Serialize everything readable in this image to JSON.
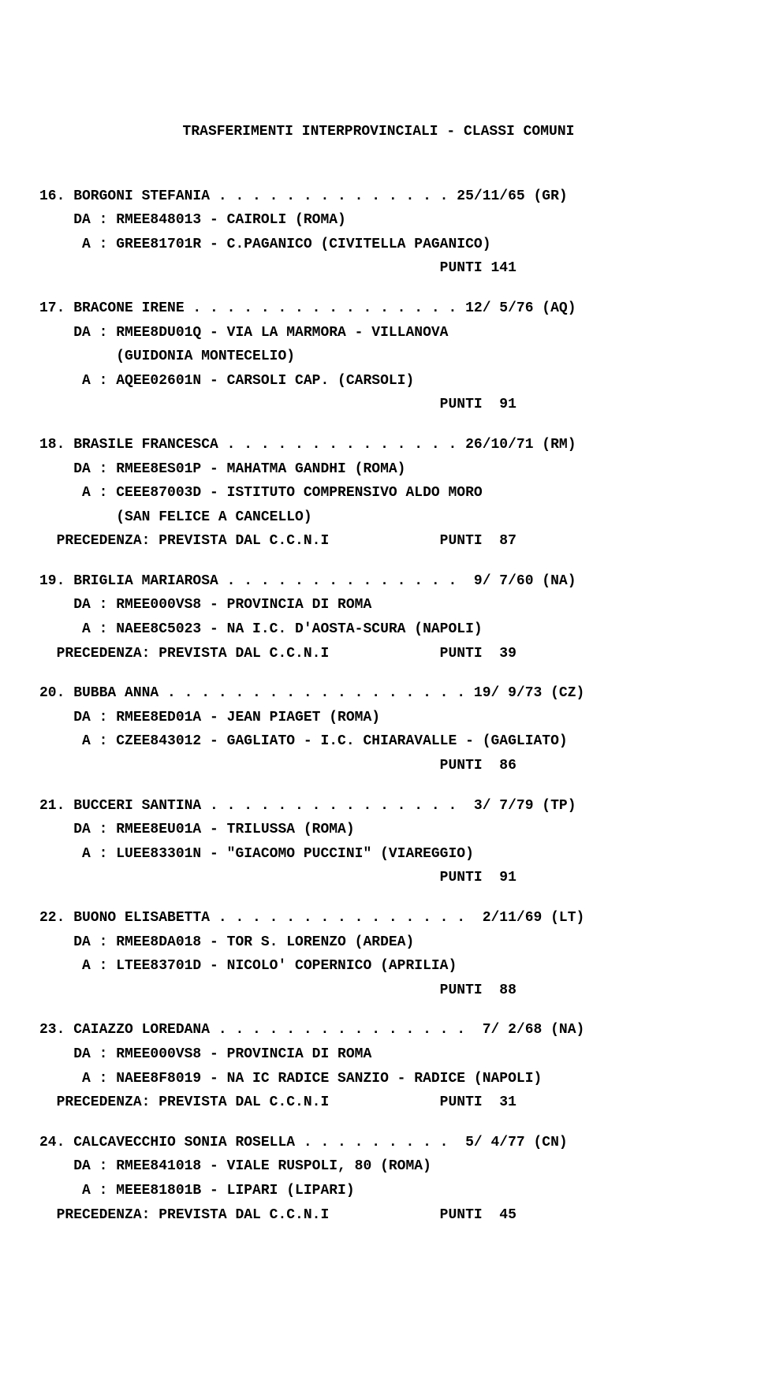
{
  "title": "TRASFERIMENTI INTERPROVINCIALI - CLASSI COMUNI",
  "entries": [
    {
      "num": "16.",
      "name": "BORGONI STEFANIA",
      "dots": " . . . . . . . . . . . . . . ",
      "date_prov": "25/11/65 (GR)",
      "da": "    DA : RMEE848013 - CAIROLI (ROMA)",
      "a": "     A : GREE81701R - C.PAGANICO (CIVITELLA PAGANICO)",
      "extra": null,
      "punti": "                                               PUNTI 141"
    },
    {
      "num": "17.",
      "name": "BRACONE IRENE",
      "dots": " . . . . . . . . . . . . . . . . ",
      "date_prov": "12/ 5/76 (AQ)",
      "da": "    DA : RMEE8DU01Q - VIA LA MARMORA - VILLANOVA",
      "da2": "         (GUIDONIA MONTECELIO)",
      "a": "     A : AQEE02601N - CARSOLI CAP. (CARSOLI)",
      "extra": null,
      "punti": "                                               PUNTI  91"
    },
    {
      "num": "18.",
      "name": "BRASILE FRANCESCA",
      "dots": " . . . . . . . . . . . . . . ",
      "date_prov": "26/10/71 (RM)",
      "da": "    DA : RMEE8ES01P - MAHATMA GANDHI (ROMA)",
      "a": "     A : CEEE87003D - ISTITUTO COMPRENSIVO ALDO MORO",
      "a2": "         (SAN FELICE A CANCELLO)",
      "extra": "  PRECEDENZA: PREVISTA DAL C.C.N.I             PUNTI  87",
      "punti": null
    },
    {
      "num": "19.",
      "name": "BRIGLIA MARIAROSA",
      "dots": " . . . . . . . . . . . . . . ",
      "date_prov": " 9/ 7/60 (NA)",
      "da": "    DA : RMEE000VS8 - PROVINCIA DI ROMA",
      "a": "     A : NAEE8C5023 - NA I.C. D'AOSTA-SCURA (NAPOLI)",
      "extra": "  PRECEDENZA: PREVISTA DAL C.C.N.I             PUNTI  39",
      "punti": null
    },
    {
      "num": "20.",
      "name": "BUBBA ANNA",
      "dots": " . . . . . . . . . . . . . . . . . . ",
      "date_prov": "19/ 9/73 (CZ)",
      "da": "    DA : RMEE8ED01A - JEAN PIAGET (ROMA)",
      "a": "     A : CZEE843012 - GAGLIATO - I.C. CHIARAVALLE - (GAGLIATO)",
      "extra": null,
      "punti": "                                               PUNTI  86"
    },
    {
      "num": "21.",
      "name": "BUCCERI SANTINA",
      "dots": " . . . . . . . . . . . . . . . ",
      "date_prov": " 3/ 7/79 (TP)",
      "da": "    DA : RMEE8EU01A - TRILUSSA (ROMA)",
      "a": "     A : LUEE83301N - \"GIACOMO PUCCINI\" (VIAREGGIO)",
      "extra": null,
      "punti": "                                               PUNTI  91"
    },
    {
      "num": "22.",
      "name": "BUONO ELISABETTA",
      "dots": " . . . . . . . . . . . . . . . ",
      "date_prov": " 2/11/69 (LT)",
      "da": "    DA : RMEE8DA018 - TOR S. LORENZO (ARDEA)",
      "a": "     A : LTEE83701D - NICOLO' COPERNICO (APRILIA)",
      "extra": null,
      "punti": "                                               PUNTI  88"
    },
    {
      "num": "23.",
      "name": "CAIAZZO LOREDANA",
      "dots": " . . . . . . . . . . . . . . . ",
      "date_prov": " 7/ 2/68 (NA)",
      "da": "    DA : RMEE000VS8 - PROVINCIA DI ROMA",
      "a": "     A : NAEE8F8019 - NA IC RADICE SANZIO - RADICE (NAPOLI)",
      "extra": "  PRECEDENZA: PREVISTA DAL C.C.N.I             PUNTI  31",
      "punti": null
    },
    {
      "num": "24.",
      "name": "CALCAVECCHIO SONIA ROSELLA",
      "dots": " . . . . . . . . . ",
      "date_prov": " 5/ 4/77 (CN)",
      "da": "    DA : RMEE841018 - VIALE RUSPOLI, 80 (ROMA)",
      "a": "     A : MEEE81801B - LIPARI (LIPARI)",
      "extra": "  PRECEDENZA: PREVISTA DAL C.C.N.I             PUNTI  45",
      "punti": null
    }
  ]
}
